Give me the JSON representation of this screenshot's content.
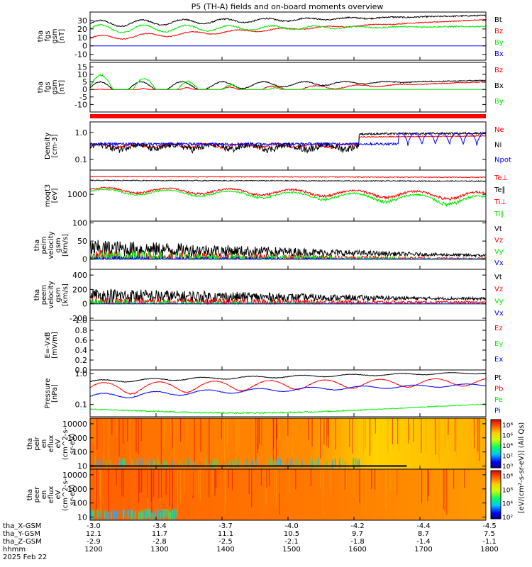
{
  "title": "P5 (TH-A) fields and on-board moments overview",
  "colors": {
    "black": "#000000",
    "red": "#ff0000",
    "green": "#00ee00",
    "blue": "#0000ff"
  },
  "chart_data": [
    {
      "type": "line",
      "ylabel": [
        "tha",
        "fgs",
        "gsm",
        "[nT]"
      ],
      "ylim": [
        -17,
        40
      ],
      "yscale": "linear",
      "ticks": [
        {
          "v": 30,
          "l": "30"
        },
        {
          "v": 20,
          "l": "20"
        },
        {
          "v": 10,
          "l": "10"
        },
        {
          "v": 0,
          "l": "0"
        },
        {
          "v": -10,
          "l": "-10"
        }
      ],
      "series": [
        {
          "name": "Bt",
          "color": "black"
        },
        {
          "name": "Bz",
          "color": "red"
        },
        {
          "name": "By",
          "color": "green"
        },
        {
          "name": "Bx",
          "color": "blue"
        }
      ]
    },
    {
      "type": "line",
      "ylabel": [
        "tha",
        "fgs",
        "gsm",
        "[nT]"
      ],
      "ylim": [
        -15,
        18
      ],
      "yscale": "linear",
      "ticks": [
        {
          "v": 15,
          "l": "15"
        },
        {
          "v": 10,
          "l": "10"
        },
        {
          "v": 5,
          "l": "5"
        },
        {
          "v": 0,
          "l": "0"
        },
        {
          "v": -5,
          "l": "-5"
        },
        {
          "v": -10,
          "l": "-10"
        }
      ],
      "series": [
        {
          "name": "Bz",
          "color": "red"
        },
        {
          "name": "Bx",
          "color": "black"
        },
        {
          "name": "By",
          "color": "green"
        }
      ]
    },
    {
      "type": "line",
      "ylabel": [
        "Density",
        "[cm-3]"
      ],
      "yscale": "log",
      "ylim": [
        0.04,
        2.5
      ],
      "ticks": [
        {
          "v": 1.0,
          "l": "1.0"
        },
        {
          "v": 0.1,
          "l": "0.1"
        }
      ],
      "series": [
        {
          "name": "Ne",
          "color": "red"
        },
        {
          "name": "Ni",
          "color": "black"
        },
        {
          "name": "Npot",
          "color": "blue"
        }
      ]
    },
    {
      "type": "line",
      "ylabel": [
        "moqt3",
        "[eV]"
      ],
      "yscale": "log",
      "ylim": [
        100,
        8000
      ],
      "ticks": [
        {
          "v": 1000,
          "l": "1000"
        }
      ],
      "series": [
        {
          "name": "Te⊥",
          "color": "red"
        },
        {
          "name": "Te∥",
          "color": "black"
        },
        {
          "name": "Ti⊥",
          "color": "red"
        },
        {
          "name": "Ti∥",
          "color": "green"
        }
      ]
    },
    {
      "type": "line",
      "ylabel": [
        "tha",
        "peim",
        "velocity",
        "gsm",
        "[km/s]"
      ],
      "ylim": [
        -28,
        105
      ],
      "yscale": "linear",
      "ticks": [
        {
          "v": 100,
          "l": "100"
        },
        {
          "v": 50,
          "l": "50"
        },
        {
          "v": 0,
          "l": "0"
        }
      ],
      "series": [
        {
          "name": "Vt",
          "color": "black"
        },
        {
          "name": "Vz",
          "color": "red"
        },
        {
          "name": "Vy",
          "color": "green"
        },
        {
          "name": "Vx",
          "color": "blue"
        }
      ]
    },
    {
      "type": "line",
      "ylabel": [
        "tha",
        "peem",
        "velocity",
        "gsm",
        "[km/s]"
      ],
      "ylim": [
        -230,
        480
      ],
      "yscale": "linear",
      "ticks": [
        {
          "v": 400,
          "l": "400"
        },
        {
          "v": 200,
          "l": "200"
        },
        {
          "v": 0,
          "l": "0"
        },
        {
          "v": -200,
          "l": "-200"
        }
      ],
      "series": [
        {
          "name": "Vt",
          "color": "black"
        },
        {
          "name": "Vz",
          "color": "red"
        },
        {
          "name": "Vy",
          "color": "green"
        },
        {
          "name": "Vx",
          "color": "blue"
        }
      ]
    },
    {
      "type": "line",
      "ylabel": [
        "E=-VxB",
        "[mV/m]"
      ],
      "ylim": [
        0,
        1
      ],
      "yscale": "linear",
      "ticks": [
        {
          "v": 1.0,
          "l": "1.0"
        },
        {
          "v": 0.8,
          "l": "0.8"
        },
        {
          "v": 0.6,
          "l": "0.6"
        },
        {
          "v": 0.4,
          "l": "0.4"
        },
        {
          "v": 0.2,
          "l": "0.2"
        },
        {
          "v": 0.0,
          "l": "0.0"
        }
      ],
      "series": [
        {
          "name": "Ez",
          "color": "red"
        },
        {
          "name": "Ey",
          "color": "green"
        },
        {
          "name": "Ex",
          "color": "blue"
        }
      ]
    },
    {
      "type": "line",
      "ylabel": [
        "Pressure",
        "[nPa]"
      ],
      "yscale": "log",
      "ylim": [
        0.04,
        1.3
      ],
      "ticks": [
        {
          "v": 1.0,
          "l": "1.0"
        },
        {
          "v": 0.1,
          "l": "0.1"
        }
      ],
      "series": [
        {
          "name": "Pt",
          "color": "black"
        },
        {
          "name": "Pb",
          "color": "red"
        },
        {
          "name": "Pe",
          "color": "green"
        },
        {
          "name": "Pi",
          "color": "blue"
        }
      ]
    },
    {
      "type": "heatmap",
      "ylabel": [
        "tha",
        "peir",
        "en",
        "eflux",
        "eV",
        "(cm^2-s-",
        "sr-eV)"
      ],
      "yscale": "log",
      "ylim": [
        6,
        25000
      ],
      "ticks": [
        {
          "v": 10000,
          "l": "10000"
        },
        {
          "v": 1000,
          "l": "1000"
        },
        {
          "v": 100,
          "l": "100"
        },
        {
          "v": 10,
          "l": "10"
        }
      ]
    },
    {
      "type": "heatmap",
      "ylabel": [
        "tha",
        "peer",
        "en",
        "eflux",
        "eV",
        "(cm^2-s-",
        "sr-eV)"
      ],
      "yscale": "log",
      "ylim": [
        6,
        25000
      ],
      "ticks": [
        {
          "v": 10000,
          "l": "10000"
        },
        {
          "v": 1000,
          "l": "1000"
        },
        {
          "v": 100,
          "l": "100"
        },
        {
          "v": 10,
          "l": "10"
        }
      ]
    }
  ],
  "colorbar": {
    "label": "[eV/(cm²-s-sr-eV)] (All Qs)",
    "bar1_ticks": [
      "10⁸",
      "10⁶",
      "10⁴",
      "10²",
      "10⁰"
    ],
    "bar2_ticks": [
      "10⁸",
      "10⁶",
      "10⁴",
      "10²"
    ]
  },
  "x_axis": {
    "row_labels": [
      "tha_X-GSM",
      "tha_Y-GSM",
      "tha_Z-GSM",
      "hhmm",
      "2025 Feb 22"
    ],
    "columns": [
      {
        "x": "-3.0",
        "y": "12.1",
        "z": "-2.9",
        "t": "1200"
      },
      {
        "x": "-3.4",
        "y": "11.7",
        "z": "-2.8",
        "t": "1300"
      },
      {
        "x": "-3.7",
        "y": "11.1",
        "z": "-2.5",
        "t": "1400"
      },
      {
        "x": "-4.0",
        "y": "10.5",
        "z": "-2.1",
        "t": "1500"
      },
      {
        "x": "-4.2",
        "y": "9.7",
        "z": "-1.8",
        "t": "1600"
      },
      {
        "x": "-4.4",
        "y": "8.7",
        "z": "-1.4",
        "t": "1700"
      },
      {
        "x": "-4.5",
        "y": "7.5",
        "z": "-1.1",
        "t": "1800"
      }
    ]
  }
}
